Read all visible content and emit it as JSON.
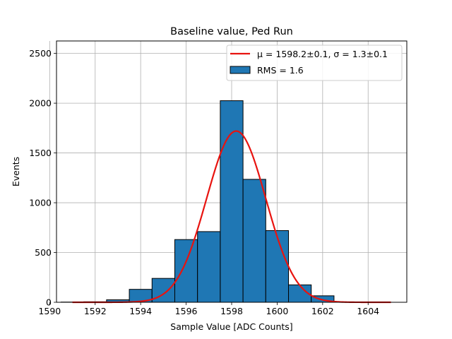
{
  "chart_data": {
    "type": "bar",
    "title": "Baseline value, Ped Run",
    "xlabel": "Sample Value [ADC Counts]",
    "ylabel": "Events",
    "xlim": [
      1590.3,
      1605.7
    ],
    "ylim": [
      0,
      2625
    ],
    "x_ticks": [
      1590,
      1592,
      1594,
      1596,
      1598,
      1600,
      1602,
      1604
    ],
    "y_ticks": [
      0,
      500,
      1000,
      1500,
      2000,
      2500
    ],
    "grid": true,
    "legend_position": "top-right",
    "histogram": {
      "legend_label": "RMS = 1.6",
      "color": "#1f77b4",
      "edge_color": "#000000",
      "bins": [
        {
          "x0": 1590.5,
          "x1": 1591.5,
          "count": 2
        },
        {
          "x0": 1591.5,
          "x1": 1592.5,
          "count": 5
        },
        {
          "x0": 1592.5,
          "x1": 1593.5,
          "count": 25
        },
        {
          "x0": 1593.5,
          "x1": 1594.5,
          "count": 130
        },
        {
          "x0": 1594.5,
          "x1": 1595.5,
          "count": 240
        },
        {
          "x0": 1595.5,
          "x1": 1596.5,
          "count": 630
        },
        {
          "x0": 1596.5,
          "x1": 1597.5,
          "count": 710
        },
        {
          "x0": 1597.5,
          "x1": 1598.5,
          "count": 2025
        },
        {
          "x0": 1598.5,
          "x1": 1599.5,
          "count": 1235
        },
        {
          "x0": 1599.5,
          "x1": 1600.5,
          "count": 720
        },
        {
          "x0": 1600.5,
          "x1": 1601.5,
          "count": 175
        },
        {
          "x0": 1601.5,
          "x1": 1602.5,
          "count": 65
        },
        {
          "x0": 1602.5,
          "x1": 1603.5,
          "count": 3
        },
        {
          "x0": 1603.5,
          "x1": 1604.5,
          "count": 1
        },
        {
          "x0": 1604.5,
          "x1": 1605.5,
          "count": 0
        }
      ]
    },
    "fit": {
      "legend_label": "μ = 1598.2±0.1, σ = 1.3±0.1",
      "color": "#e8130f",
      "mean": 1598.2,
      "sigma": 1.3,
      "amplitude": 1720,
      "x_range": [
        1591,
        1605
      ]
    }
  }
}
